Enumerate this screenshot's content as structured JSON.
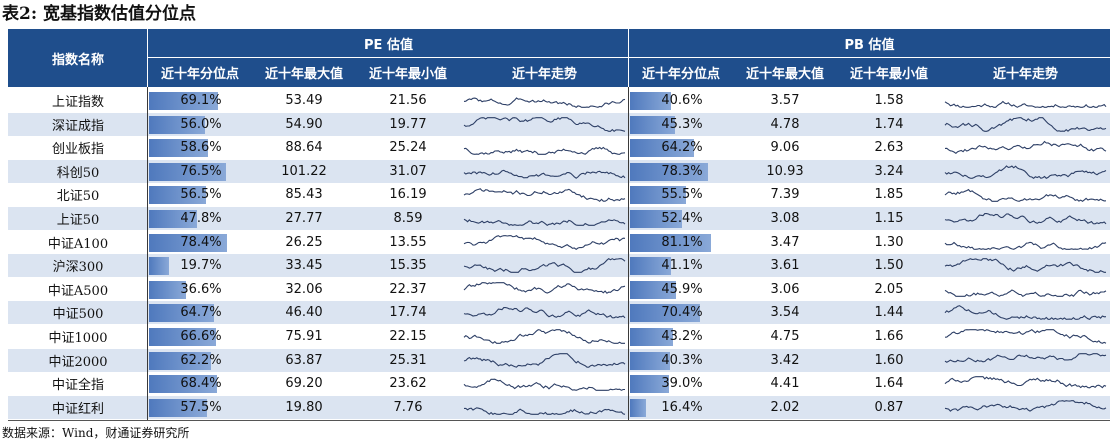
{
  "title": "表2: 宽基指数估值分位点",
  "source": "数据来源：Wind，财通证券研究所",
  "header": {
    "index_name": "指数名称",
    "pe_group": "PE 估值",
    "pb_group": "PB 估值",
    "sub": [
      "近十年分位点",
      "近十年最大值",
      "近十年最小值",
      "近十年走势"
    ]
  },
  "colors": {
    "header_bg": "#1f4e8c",
    "stripe": "#dbe4f1",
    "bar": "#4f79bd",
    "sparkline": "#2d3f66"
  },
  "chart_data": {
    "type": "table",
    "columns": [
      "指数名称",
      "PE 近十年分位点",
      "PE 近十年最大值",
      "PE 近十年最小值",
      "PE 近十年走势",
      "PB 近十年分位点",
      "PB 近十年最大值",
      "PB 近十年最小值",
      "PB 近十年走势"
    ],
    "rows": [
      {
        "name": "上证指数",
        "pe_pct": "69.1%",
        "pe_pct_value": 69.1,
        "pe_max": "53.49",
        "pe_min": "21.56",
        "pb_pct": "40.6%",
        "pb_pct_value": 40.6,
        "pb_max": "3.57",
        "pb_min": "1.58"
      },
      {
        "name": "深证成指",
        "pe_pct": "56.0%",
        "pe_pct_value": 56.0,
        "pe_max": "54.90",
        "pe_min": "19.77",
        "pb_pct": "45.3%",
        "pb_pct_value": 45.3,
        "pb_max": "4.78",
        "pb_min": "1.74"
      },
      {
        "name": "创业板指",
        "pe_pct": "58.6%",
        "pe_pct_value": 58.6,
        "pe_max": "88.64",
        "pe_min": "25.24",
        "pb_pct": "64.2%",
        "pb_pct_value": 64.2,
        "pb_max": "9.06",
        "pb_min": "2.63"
      },
      {
        "name": "科创50",
        "pe_pct": "76.5%",
        "pe_pct_value": 76.5,
        "pe_max": "101.22",
        "pe_min": "31.07",
        "pb_pct": "78.3%",
        "pb_pct_value": 78.3,
        "pb_max": "10.93",
        "pb_min": "3.24"
      },
      {
        "name": "北证50",
        "pe_pct": "56.5%",
        "pe_pct_value": 56.5,
        "pe_max": "85.43",
        "pe_min": "16.19",
        "pb_pct": "55.5%",
        "pb_pct_value": 55.5,
        "pb_max": "7.39",
        "pb_min": "1.85"
      },
      {
        "name": "上证50",
        "pe_pct": "47.8%",
        "pe_pct_value": 47.8,
        "pe_max": "27.77",
        "pe_min": "8.59",
        "pb_pct": "52.4%",
        "pb_pct_value": 52.4,
        "pb_max": "3.08",
        "pb_min": "1.15"
      },
      {
        "name": "中证A100",
        "pe_pct": "78.4%",
        "pe_pct_value": 78.4,
        "pe_max": "26.25",
        "pe_min": "13.55",
        "pb_pct": "81.1%",
        "pb_pct_value": 81.1,
        "pb_max": "3.47",
        "pb_min": "1.30"
      },
      {
        "name": "沪深300",
        "pe_pct": "19.7%",
        "pe_pct_value": 19.7,
        "pe_max": "33.45",
        "pe_min": "15.35",
        "pb_pct": "41.1%",
        "pb_pct_value": 41.1,
        "pb_max": "3.61",
        "pb_min": "1.50"
      },
      {
        "name": "中证A500",
        "pe_pct": "36.6%",
        "pe_pct_value": 36.6,
        "pe_max": "32.06",
        "pe_min": "22.37",
        "pb_pct": "45.9%",
        "pb_pct_value": 45.9,
        "pb_max": "3.06",
        "pb_min": "2.05"
      },
      {
        "name": "中证500",
        "pe_pct": "64.7%",
        "pe_pct_value": 64.7,
        "pe_max": "46.40",
        "pe_min": "17.74",
        "pb_pct": "70.4%",
        "pb_pct_value": 70.4,
        "pb_max": "3.54",
        "pb_min": "1.44"
      },
      {
        "name": "中证1000",
        "pe_pct": "66.6%",
        "pe_pct_value": 66.6,
        "pe_max": "75.91",
        "pe_min": "22.15",
        "pb_pct": "43.2%",
        "pb_pct_value": 43.2,
        "pb_max": "4.75",
        "pb_min": "1.66"
      },
      {
        "name": "中证2000",
        "pe_pct": "62.2%",
        "pe_pct_value": 62.2,
        "pe_max": "63.87",
        "pe_min": "25.31",
        "pb_pct": "40.3%",
        "pb_pct_value": 40.3,
        "pb_max": "3.42",
        "pb_min": "1.60"
      },
      {
        "name": "中证全指",
        "pe_pct": "68.4%",
        "pe_pct_value": 68.4,
        "pe_max": "69.20",
        "pe_min": "23.62",
        "pb_pct": "39.0%",
        "pb_pct_value": 39.0,
        "pb_max": "4.41",
        "pb_min": "1.64"
      },
      {
        "name": "中证红利",
        "pe_pct": "57.5%",
        "pe_pct_value": 57.5,
        "pe_max": "19.80",
        "pe_min": "7.76",
        "pb_pct": "16.4%",
        "pb_pct_value": 16.4,
        "pb_max": "2.02",
        "pb_min": "0.87"
      }
    ]
  }
}
